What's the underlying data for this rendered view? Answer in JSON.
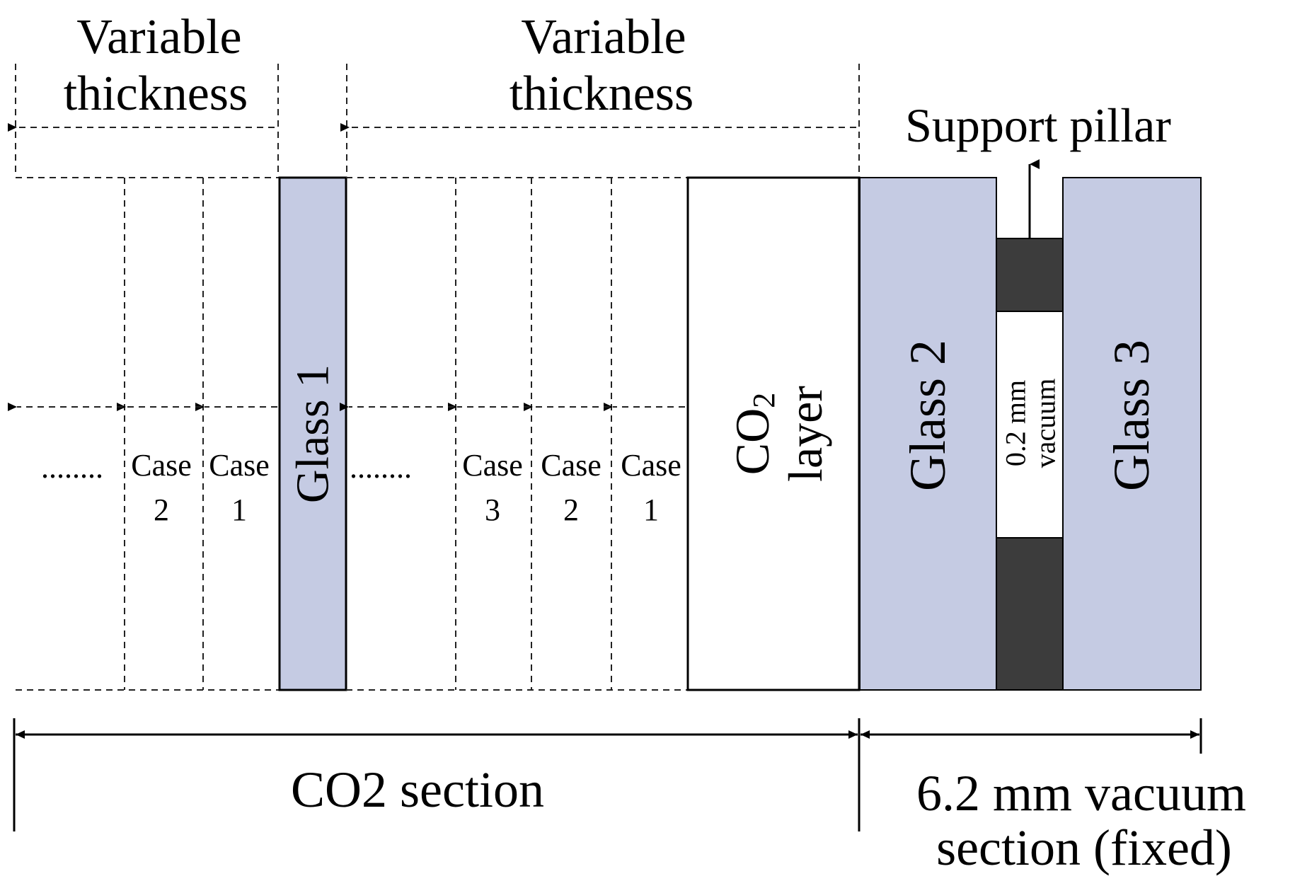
{
  "top_labels": {
    "left_line1": "Variable",
    "left_line2": "thickness",
    "mid_line1": "Variable",
    "mid_line2": "thickness",
    "support_pillar": "Support pillar"
  },
  "layers": {
    "glass1": "Glass 1",
    "co2_main": "CO",
    "co2_sub": "2",
    "co2_line2": "layer",
    "glass2": "Glass 2",
    "vacuum_line1": "0.2  mm",
    "vacuum_line2": "vacuum",
    "glass3": "Glass 3"
  },
  "left_cases": [
    {
      "word": "Case",
      "num": "2"
    },
    {
      "word": "Case",
      "num": "1"
    }
  ],
  "mid_cases": [
    {
      "word": "Case",
      "num": "3"
    },
    {
      "word": "Case",
      "num": "2"
    },
    {
      "word": "Case",
      "num": "1"
    }
  ],
  "ellipsis": "........",
  "bottom_labels": {
    "co2_section": "CO2 section",
    "vacuum_line1": "6.2 mm vacuum",
    "vacuum_line2": "section (fixed)"
  },
  "colors": {
    "glass_fill": "#c5cbe3",
    "pillar_fill": "#3c3c3c"
  }
}
